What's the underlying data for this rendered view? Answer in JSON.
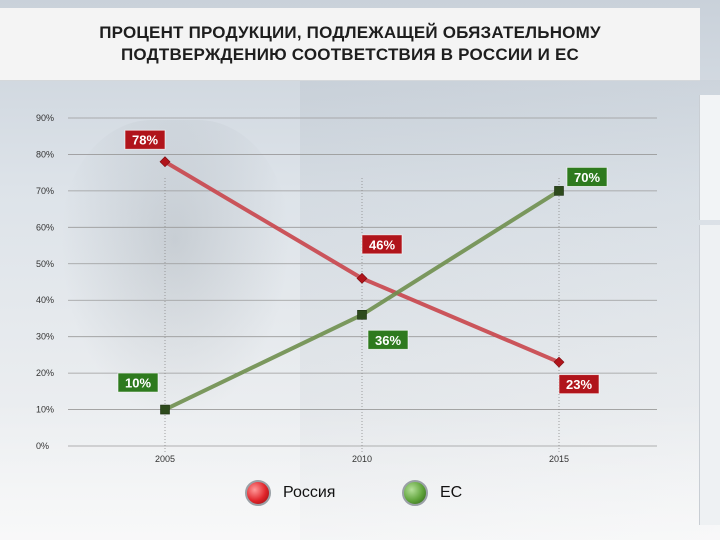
{
  "title": "ПРОЦЕНТ ПРОДУКЦИИ, ПОДЛЕЖАЩЕЙ ОБЯЗАТЕЛЬНОМУ ПОДТВЕРЖДЕНИЮ СООТВЕТСТВИЯ В РОССИИ И ЕС",
  "colors": {
    "russia": "#c9454b",
    "russia_label_bg": "#b0141b",
    "eu": "#6f8f4e",
    "eu_label_bg": "#2e7a1e",
    "grid": "#9a9a9a"
  },
  "legend": [
    {
      "name": "Россия",
      "icon": "red-sphere-icon"
    },
    {
      "name": "ЕС",
      "icon": "green-sphere-icon"
    }
  ],
  "chart_data": {
    "type": "line",
    "x": [
      "2005",
      "2010",
      "2015"
    ],
    "ylim": [
      0,
      90
    ],
    "yticks": [
      0,
      10,
      20,
      30,
      40,
      50,
      60,
      70,
      80,
      90
    ],
    "ytick_labels": [
      "0%",
      "10%",
      "20%",
      "30%",
      "40%",
      "50%",
      "60%",
      "70%",
      "80%",
      "90%"
    ],
    "grid": true,
    "legend_position": "bottom",
    "series": [
      {
        "name": "Россия",
        "values": [
          78,
          46,
          23
        ],
        "labels": [
          "78%",
          "46%",
          "23%"
        ]
      },
      {
        "name": "ЕС",
        "values": [
          10,
          36,
          70
        ],
        "labels": [
          "10%",
          "36%",
          "70%"
        ]
      }
    ]
  }
}
